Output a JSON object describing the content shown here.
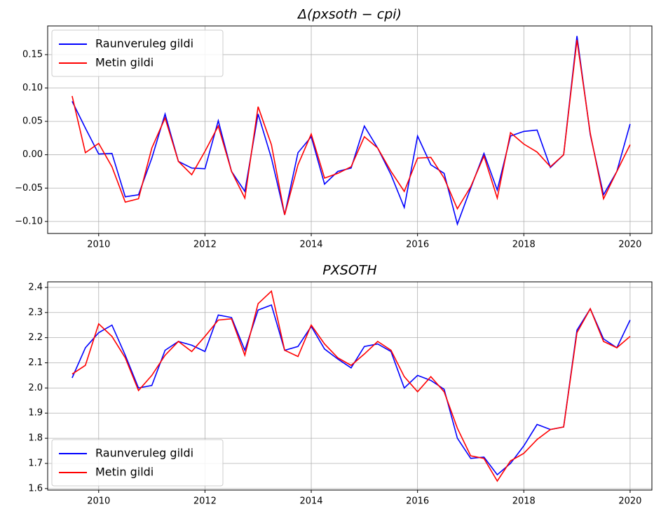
{
  "chart_data": [
    {
      "type": "line",
      "title": "Δ(pxsoth − cpi)",
      "x": [
        2009.5,
        2009.75,
        2010,
        2010.25,
        2010.5,
        2010.75,
        2011,
        2011.25,
        2011.5,
        2011.75,
        2012,
        2012.25,
        2012.5,
        2012.75,
        2013,
        2013.25,
        2013.5,
        2013.75,
        2014,
        2014.25,
        2014.5,
        2014.75,
        2015,
        2015.25,
        2015.5,
        2015.75,
        2016,
        2016.25,
        2016.5,
        2016.75,
        2017,
        2017.25,
        2017.5,
        2017.75,
        2018,
        2018.25,
        2018.5,
        2018.75,
        2019,
        2019.25,
        2019.5,
        2019.75,
        2020
      ],
      "series": [
        {
          "name": "Raunveruleg gildi",
          "color": "#0000ff",
          "values": [
            0.08,
            0.04,
            0.001,
            0.002,
            -0.063,
            -0.06,
            -0.005,
            0.061,
            -0.01,
            -0.02,
            -0.021,
            0.051,
            -0.025,
            -0.055,
            0.061,
            -0.005,
            -0.09,
            0.003,
            0.027,
            -0.044,
            -0.025,
            -0.02,
            0.043,
            0.01,
            -0.03,
            -0.079,
            0.028,
            -0.015,
            -0.028,
            -0.104,
            -0.05,
            0.002,
            -0.053,
            0.028,
            0.035,
            0.037,
            -0.019,
            0.0,
            0.178,
            0.03,
            -0.06,
            -0.025,
            0.046
          ]
        },
        {
          "name": "Metin gildi",
          "color": "#ff0000",
          "values": [
            0.088,
            0.003,
            0.017,
            -0.018,
            -0.071,
            -0.066,
            0.01,
            0.055,
            -0.01,
            -0.03,
            0.005,
            0.043,
            -0.025,
            -0.065,
            0.072,
            0.015,
            -0.09,
            -0.015,
            0.031,
            -0.035,
            -0.028,
            -0.018,
            0.027,
            0.01,
            -0.025,
            -0.055,
            -0.005,
            -0.004,
            -0.035,
            -0.081,
            -0.048,
            -0.002,
            -0.065,
            0.033,
            0.016,
            0.004,
            -0.018,
            0.0,
            0.172,
            0.032,
            -0.066,
            -0.025,
            0.015
          ]
        }
      ],
      "xlim": [
        2009.04,
        2020.41
      ],
      "xticks": [
        2010,
        2012,
        2014,
        2016,
        2018,
        2020
      ],
      "ylim": [
        -0.118,
        0.193
      ],
      "yticks": [
        {
          "value": -0.1,
          "label": "−0.10"
        },
        {
          "value": -0.05,
          "label": "−0.05"
        },
        {
          "value": 0,
          "label": "0.00"
        },
        0.05,
        {
          "value": 0.1,
          "label": "0.10"
        },
        0.15
      ],
      "grid": true,
      "legend": "upper-left"
    },
    {
      "type": "line",
      "title": "PXSOTH",
      "x": [
        2009.5,
        2009.75,
        2010,
        2010.25,
        2010.5,
        2010.75,
        2011,
        2011.25,
        2011.5,
        2011.75,
        2012,
        2012.25,
        2012.5,
        2012.75,
        2013,
        2013.25,
        2013.5,
        2013.75,
        2014,
        2014.25,
        2014.5,
        2014.75,
        2015,
        2015.25,
        2015.5,
        2015.75,
        2016,
        2016.25,
        2016.5,
        2016.75,
        2017,
        2017.25,
        2017.5,
        2017.75,
        2018,
        2018.25,
        2018.5,
        2018.75,
        2019,
        2019.25,
        2019.5,
        2019.75,
        2020
      ],
      "series": [
        {
          "name": "Raunveruleg gildi",
          "color": "#0000ff",
          "values": [
            2.04,
            2.16,
            2.22,
            2.25,
            2.13,
            2.0,
            2.01,
            2.15,
            2.185,
            2.17,
            2.145,
            2.29,
            2.28,
            2.15,
            2.31,
            2.33,
            2.15,
            2.165,
            2.245,
            2.155,
            2.115,
            2.08,
            2.165,
            2.175,
            2.145,
            2.0,
            2.05,
            2.03,
            1.995,
            1.8,
            1.72,
            1.725,
            1.655,
            1.7,
            1.77,
            1.855,
            1.835,
            1.845,
            2.23,
            2.315,
            2.195,
            2.16,
            2.27
          ]
        },
        {
          "name": "Metin gildi",
          "color": "#ff0000",
          "values": [
            2.055,
            2.09,
            2.255,
            2.205,
            2.12,
            1.99,
            2.05,
            2.13,
            2.185,
            2.145,
            2.205,
            2.27,
            2.275,
            2.13,
            2.335,
            2.385,
            2.15,
            2.125,
            2.25,
            2.175,
            2.12,
            2.09,
            2.135,
            2.185,
            2.15,
            2.045,
            1.985,
            2.045,
            1.985,
            1.84,
            1.73,
            1.72,
            1.63,
            1.71,
            1.74,
            1.795,
            1.835,
            1.845,
            2.22,
            2.315,
            2.185,
            2.16,
            2.205
          ]
        }
      ],
      "xlim": [
        2009.04,
        2020.41
      ],
      "xticks": [
        2010,
        2012,
        2014,
        2016,
        2018,
        2020
      ],
      "ylim": [
        1.594,
        2.422
      ],
      "yticks": [
        1.6,
        1.7,
        1.8,
        1.9,
        {
          "value": 2.0,
          "label": "2.0"
        },
        2.1,
        2.2,
        2.3,
        2.4
      ],
      "grid": true,
      "legend": "lower-left"
    }
  ]
}
